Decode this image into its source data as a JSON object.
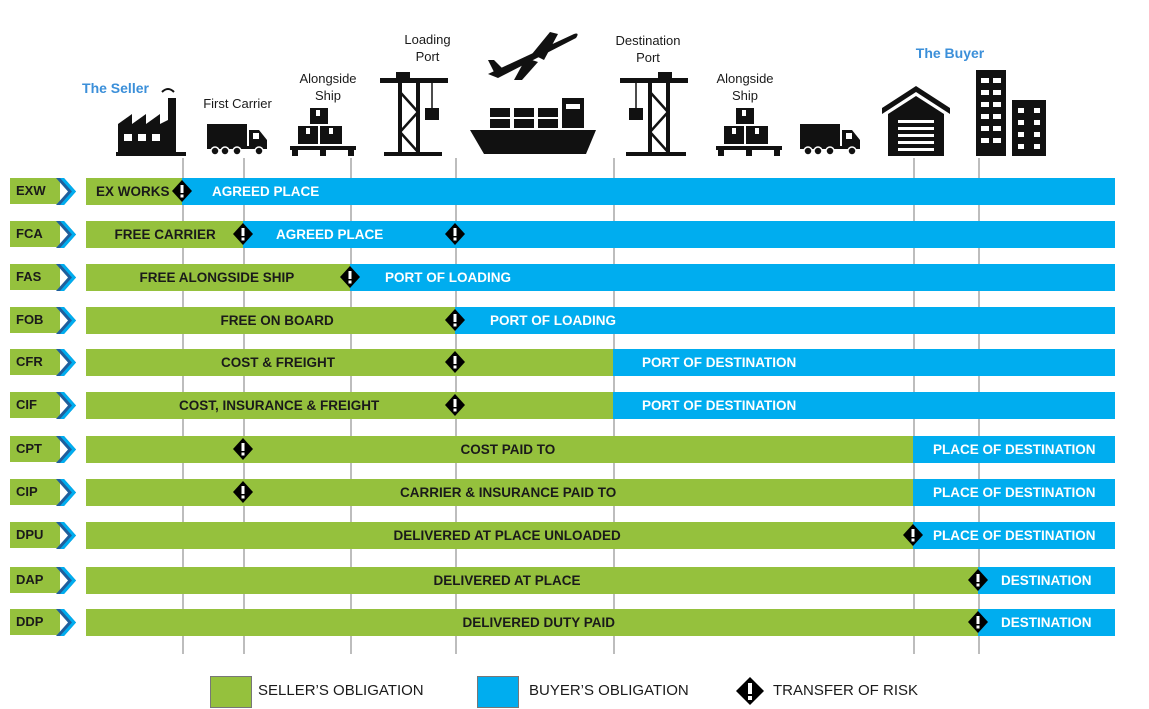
{
  "header": {
    "seller_label": "The Seller",
    "buyer_label": "The Buyer",
    "stages": [
      {
        "id": "first-carrier",
        "lines": [
          "First Carrier"
        ]
      },
      {
        "id": "alongside-ship-1",
        "lines": [
          "Alongside",
          "Ship"
        ]
      },
      {
        "id": "loading-port",
        "lines": [
          "Loading",
          "Port"
        ]
      },
      {
        "id": "destination-port",
        "lines": [
          "Destination",
          "Port"
        ]
      },
      {
        "id": "alongside-ship-2",
        "lines": [
          "Alongside",
          "Ship"
        ]
      }
    ],
    "icons": [
      "factory-icon",
      "truck-icon",
      "pallet-boxes-icon",
      "port-crane-icon",
      "airplane-icon",
      "cargo-ship-icon",
      "port-crane-icon",
      "pallet-boxes-icon",
      "truck-icon",
      "warehouse-icon",
      "buildings-icon"
    ]
  },
  "colors": {
    "seller": "#95c13d",
    "buyer": "#00adef",
    "risk": "#000000"
  },
  "rows": [
    {
      "code": "EXW",
      "seller_text": "EX WORKS",
      "buyer_text": "AGREED PLACE"
    },
    {
      "code": "FCA",
      "seller_text": "FREE CARRIER",
      "buyer_text": "AGREED PLACE"
    },
    {
      "code": "FAS",
      "seller_text": "FREE ALONGSIDE SHIP",
      "buyer_text": "PORT OF LOADING"
    },
    {
      "code": "FOB",
      "seller_text": "FREE  ON BOARD",
      "buyer_text": "PORT OF LOADING"
    },
    {
      "code": "CFR",
      "seller_text": "COST & FREIGHT",
      "buyer_text": "PORT OF DESTINATION"
    },
    {
      "code": "CIF",
      "seller_text": "COST, INSURANCE & FREIGHT",
      "buyer_text": "PORT OF DESTINATION"
    },
    {
      "code": "CPT",
      "seller_text": "COST PAID TO",
      "buyer_text": "PLACE OF DESTINATION"
    },
    {
      "code": "CIP",
      "seller_text": "CARRIER & INSURANCE PAID TO",
      "buyer_text": "PLACE OF DESTINATION"
    },
    {
      "code": "DPU",
      "seller_text": "DELIVERED AT PLACE UNLOADED",
      "buyer_text": "PLACE OF DESTINATION"
    },
    {
      "code": "DAP",
      "seller_text": "DELIVERED AT PLACE",
      "buyer_text": "DESTINATION"
    },
    {
      "code": "DDP",
      "seller_text": "DELIVERED DUTY PAID",
      "buyer_text": "DESTINATION"
    }
  ],
  "legend": {
    "seller": "SELLER’S OBLIGATION",
    "buyer": "BUYER’S OBLIGATION",
    "risk": "TRANSFER OF RISK"
  }
}
